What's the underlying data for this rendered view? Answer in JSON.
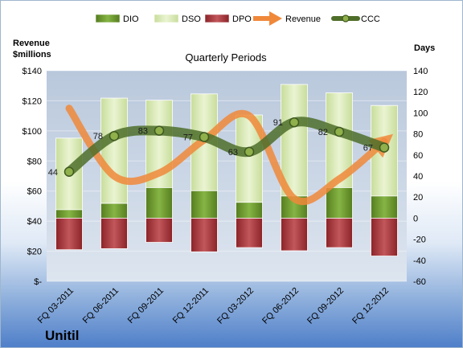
{
  "company": "Unitil",
  "chart_data": {
    "type": "bar",
    "title": "Quarterly Periods",
    "y_left_label": [
      "Revenue",
      "$millions"
    ],
    "y_right_label": "Days",
    "categories": [
      "FQ 03-2011",
      "FQ 06-2011",
      "FQ 09-2011",
      "FQ 12-2011",
      "FQ 03-2012",
      "FQ 06-2012",
      "FQ 09-2012",
      "FQ 12-2012"
    ],
    "y_left_range": [
      0,
      140
    ],
    "y_left_ticks": [
      "$-",
      "$20",
      "$40",
      "$60",
      "$80",
      "$100",
      "$120",
      "$140"
    ],
    "y_right_range": [
      -60,
      140
    ],
    "y_right_ticks": [
      "-60",
      "-40",
      "-20",
      "0",
      "20",
      "40",
      "60",
      "80",
      "100",
      "120",
      "140"
    ],
    "legend": [
      "DIO",
      "DSO",
      "DPO",
      "Revenue",
      "CCC"
    ],
    "legend_position": "top",
    "series": [
      {
        "name": "DIO",
        "axis": "right",
        "values": [
          8,
          14,
          29,
          26,
          15,
          21,
          29,
          21
        ],
        "color": "#6b9a2c"
      },
      {
        "name": "DSO",
        "axis": "right",
        "values": [
          68,
          100,
          83,
          92,
          83,
          106,
          90,
          86
        ],
        "color": "#d8eab0"
      },
      {
        "name": "DPO",
        "axis": "right",
        "values": [
          -30,
          -29,
          -23,
          -32,
          -28,
          -31,
          -28,
          -36
        ],
        "color": "#a3353a"
      },
      {
        "name": "Revenue",
        "axis": "left",
        "values": [
          115,
          70,
          72,
          94,
          110,
          55,
          68,
          93
        ],
        "color": "#f0883a"
      },
      {
        "name": "CCC",
        "axis": "right",
        "values": [
          44,
          78,
          83,
          77,
          63,
          91,
          82,
          67
        ],
        "color": "#4e6e2a"
      }
    ],
    "data_labels": [
      "44",
      "78",
      "83",
      "77",
      "63",
      "91",
      "82",
      "67"
    ],
    "grid": true
  }
}
